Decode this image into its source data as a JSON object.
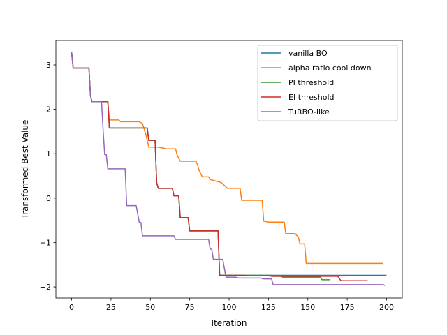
{
  "chart_data": {
    "type": "line",
    "title": "",
    "xlabel": "Iteration",
    "ylabel": "Transformed Best Value",
    "xlim": [
      -10,
      210
    ],
    "ylim": [
      -2.25,
      3.55
    ],
    "xticks": [
      0,
      25,
      50,
      75,
      100,
      125,
      150,
      175,
      200
    ],
    "xtick_labels": [
      "0",
      "25",
      "50",
      "75",
      "100",
      "125",
      "150",
      "175",
      "200"
    ],
    "yticks": [
      -2,
      -1,
      0,
      1,
      2,
      3
    ],
    "ytick_labels": [
      "−2",
      "−1",
      "0",
      "1",
      "2",
      "3"
    ],
    "grid": false,
    "legend_position": "top-right",
    "series": [
      {
        "name": "vanilla BO",
        "color": "#1f77b4",
        "points": [
          [
            0,
            3.28
          ],
          [
            1,
            2.93
          ],
          [
            11,
            2.93
          ],
          [
            12,
            2.3
          ],
          [
            13,
            2.17
          ],
          [
            23,
            2.17
          ],
          [
            24,
            1.58
          ],
          [
            48,
            1.58
          ],
          [
            49,
            1.3
          ],
          [
            53,
            1.3
          ],
          [
            54,
            0.35
          ],
          [
            55,
            0.22
          ],
          [
            64,
            0.22
          ],
          [
            65,
            0.05
          ],
          [
            68,
            0.05
          ],
          [
            69,
            -0.44
          ],
          [
            74,
            -0.44
          ],
          [
            75,
            -0.74
          ],
          [
            93,
            -0.74
          ],
          [
            94,
            -1.74
          ],
          [
            200,
            -1.74
          ]
        ]
      },
      {
        "name": "alpha ratio cool down",
        "color": "#ff7f0e",
        "points": [
          [
            0,
            3.28
          ],
          [
            1,
            2.93
          ],
          [
            11,
            2.93
          ],
          [
            12,
            2.3
          ],
          [
            13,
            2.17
          ],
          [
            23,
            2.17
          ],
          [
            24,
            1.76
          ],
          [
            30,
            1.76
          ],
          [
            31,
            1.72
          ],
          [
            43,
            1.72
          ],
          [
            45,
            1.68
          ],
          [
            47,
            1.45
          ],
          [
            49,
            1.15
          ],
          [
            53,
            1.15
          ],
          [
            54,
            1.15
          ],
          [
            58,
            1.13
          ],
          [
            60,
            1.11
          ],
          [
            66,
            1.11
          ],
          [
            67,
            0.97
          ],
          [
            69,
            0.83
          ],
          [
            79,
            0.83
          ],
          [
            80,
            0.75
          ],
          [
            81,
            0.62
          ],
          [
            83,
            0.48
          ],
          [
            87,
            0.48
          ],
          [
            88,
            0.42
          ],
          [
            95,
            0.35
          ],
          [
            99,
            0.22
          ],
          [
            107,
            0.22
          ],
          [
            108,
            -0.05
          ],
          [
            121,
            -0.05
          ],
          [
            122,
            -0.52
          ],
          [
            125,
            -0.54
          ],
          [
            135,
            -0.54
          ],
          [
            136,
            -0.8
          ],
          [
            142,
            -0.8
          ],
          [
            144,
            -0.88
          ],
          [
            145,
            -1.03
          ],
          [
            148,
            -1.03
          ],
          [
            149,
            -1.47
          ],
          [
            198,
            -1.47
          ]
        ]
      },
      {
        "name": "PI threshold",
        "color": "#2ca02c",
        "points": [
          [
            0,
            3.28
          ],
          [
            1,
            2.93
          ],
          [
            11,
            2.93
          ],
          [
            12,
            2.3
          ],
          [
            13,
            2.17
          ],
          [
            23,
            2.17
          ],
          [
            24,
            1.58
          ],
          [
            48,
            1.58
          ],
          [
            49,
            1.3
          ],
          [
            53,
            1.3
          ],
          [
            54,
            0.35
          ],
          [
            55,
            0.22
          ],
          [
            64,
            0.22
          ],
          [
            65,
            0.05
          ],
          [
            68,
            0.05
          ],
          [
            69,
            -0.44
          ],
          [
            74,
            -0.44
          ],
          [
            75,
            -0.74
          ],
          [
            93,
            -0.74
          ],
          [
            94,
            -1.74
          ],
          [
            127,
            -1.74
          ],
          [
            128,
            -1.76
          ],
          [
            133,
            -1.76
          ],
          [
            134,
            -1.78
          ],
          [
            158,
            -1.78
          ],
          [
            159,
            -1.84
          ],
          [
            164,
            -1.84
          ]
        ]
      },
      {
        "name": "EI threshold",
        "color": "#d62728",
        "points": [
          [
            0,
            3.28
          ],
          [
            1,
            2.93
          ],
          [
            11,
            2.93
          ],
          [
            12,
            2.3
          ],
          [
            13,
            2.17
          ],
          [
            23,
            2.17
          ],
          [
            24,
            1.58
          ],
          [
            48,
            1.58
          ],
          [
            49,
            1.3
          ],
          [
            53,
            1.3
          ],
          [
            54,
            0.35
          ],
          [
            55,
            0.22
          ],
          [
            64,
            0.22
          ],
          [
            65,
            0.05
          ],
          [
            68,
            0.05
          ],
          [
            69,
            -0.44
          ],
          [
            74,
            -0.44
          ],
          [
            75,
            -0.74
          ],
          [
            93,
            -0.74
          ],
          [
            94,
            -1.74
          ],
          [
            110,
            -1.74
          ],
          [
            112,
            -1.75
          ],
          [
            125,
            -1.75
          ],
          [
            127,
            -1.76
          ],
          [
            169,
            -1.76
          ],
          [
            171,
            -1.86
          ],
          [
            188,
            -1.86
          ]
        ]
      },
      {
        "name": "TuRBO-like",
        "color": "#9467bd",
        "points": [
          [
            0,
            3.28
          ],
          [
            1,
            2.93
          ],
          [
            11,
            2.93
          ],
          [
            12,
            2.3
          ],
          [
            13,
            2.17
          ],
          [
            19,
            2.17
          ],
          [
            20,
            1.53
          ],
          [
            21,
            0.98
          ],
          [
            22,
            0.98
          ],
          [
            23,
            0.66
          ],
          [
            34,
            0.66
          ],
          [
            35,
            -0.17
          ],
          [
            41,
            -0.17
          ],
          [
            43,
            -0.55
          ],
          [
            44,
            -0.55
          ],
          [
            45,
            -0.85
          ],
          [
            65,
            -0.85
          ],
          [
            66,
            -0.93
          ],
          [
            87,
            -0.93
          ],
          [
            88,
            -1.15
          ],
          [
            89,
            -1.15
          ],
          [
            90,
            -1.38
          ],
          [
            96,
            -1.38
          ],
          [
            98,
            -1.78
          ],
          [
            104,
            -1.78
          ],
          [
            106,
            -1.8
          ],
          [
            120,
            -1.8
          ],
          [
            122,
            -1.82
          ],
          [
            127,
            -1.82
          ],
          [
            128,
            -1.95
          ],
          [
            198,
            -1.95
          ],
          [
            199,
            -1.97
          ]
        ]
      }
    ]
  }
}
